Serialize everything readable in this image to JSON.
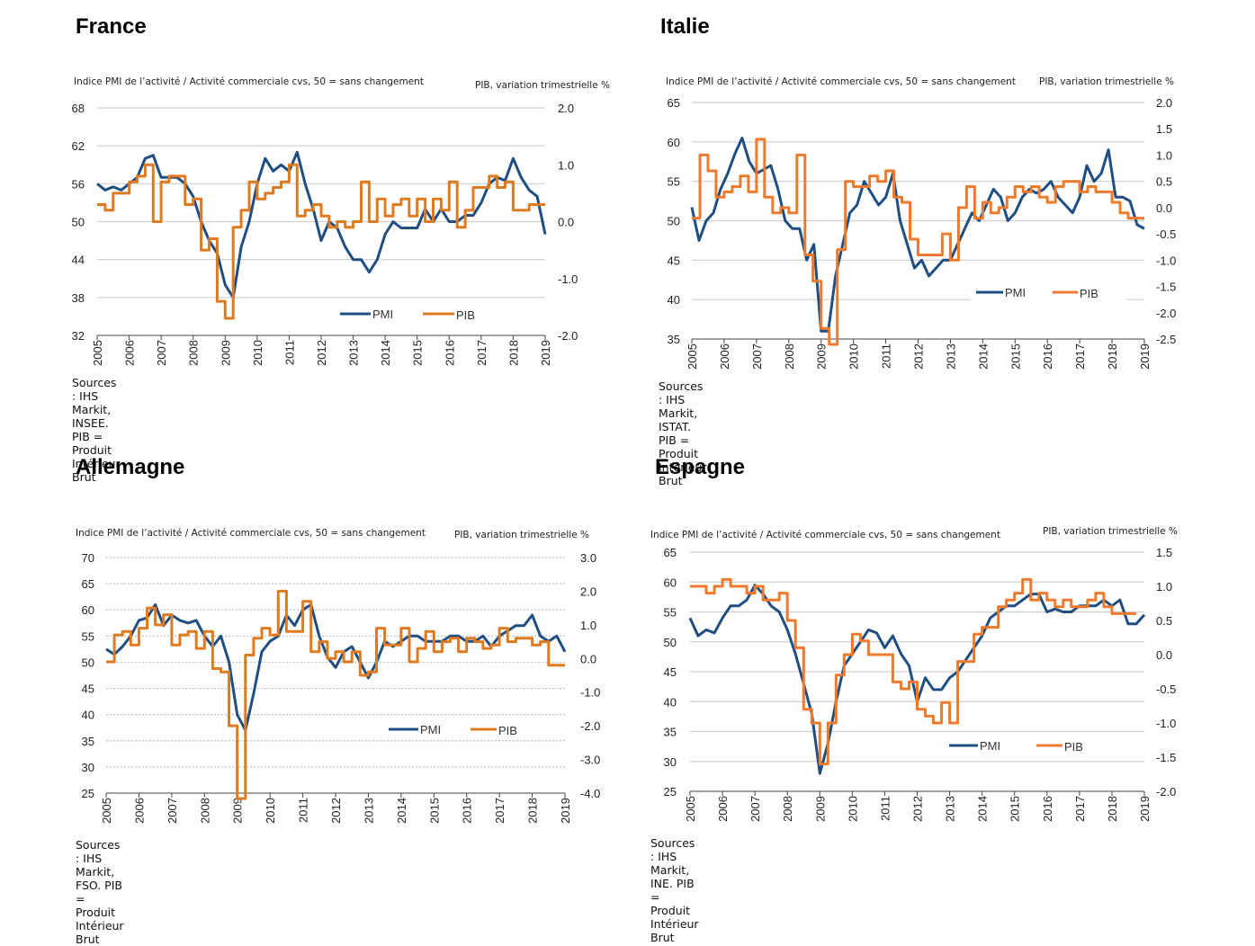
{
  "colors": {
    "pmi": "#1f4e82",
    "pib_fr": "#e07a1f",
    "pib_other": "#f07a2c",
    "grid": "#cfcfcf",
    "axis": "#444444"
  },
  "common": {
    "left_axis_label": "Indice PMI de l’activité / Activité commerciale cvs, 50 = sans changement",
    "right_axis_label": "PIB, variation trimestrielle %",
    "legend_pmi": "PMI",
    "legend_pib": "PIB"
  },
  "chart_data": [
    {
      "id": "france",
      "type": "line",
      "title": "France",
      "left_axis_label": "Indice PMI de l’activité / Activité commerciale cvs, 50 = sans changement",
      "right_axis_label": "PIB, variation trimestrielle %",
      "source": "Sources : IHS Markit, INSEE. PIB = Produit Intérieur Brut",
      "x_ticks": [
        "2005",
        "2006",
        "2007",
        "2008",
        "2009",
        "2010",
        "2011",
        "2012",
        "2013",
        "2014",
        "2015",
        "2016",
        "2017",
        "2018",
        "2019"
      ],
      "x_range": [
        2005,
        2019
      ],
      "y_left": {
        "range": [
          32,
          68
        ],
        "ticks": [
          "68",
          "62",
          "56",
          "50",
          "44",
          "38",
          "32"
        ],
        "values": [
          68,
          62,
          56,
          50,
          44,
          38,
          32
        ]
      },
      "y_right": {
        "range": [
          -2.0,
          2.0
        ],
        "ticks": [
          "2.0",
          "1.0",
          "0.0",
          "-1.0",
          "-2.0"
        ],
        "values": [
          2,
          1,
          0,
          -1,
          -2
        ]
      },
      "grid": "solid",
      "legend": "bottom-center",
      "series": [
        {
          "name": "PMI",
          "axis": "left",
          "frequency": "quarterly",
          "start": 2005.0,
          "values": [
            56,
            55,
            55.5,
            55,
            56,
            57,
            60,
            60.5,
            57,
            57,
            57,
            56,
            54,
            50,
            47,
            45,
            40,
            38,
            46,
            50,
            56,
            60,
            58,
            59,
            58,
            61,
            56,
            52,
            47,
            50,
            49,
            46,
            44,
            44,
            42,
            44,
            48,
            50,
            49,
            49,
            49,
            52,
            50,
            52,
            50,
            50,
            51,
            51,
            53,
            56,
            57,
            56.5,
            60,
            57,
            55,
            54,
            48
          ]
        },
        {
          "name": "PIB",
          "axis": "right",
          "frequency": "quarterly",
          "step": true,
          "start": 2005.0,
          "values": [
            0.3,
            0.2,
            0.5,
            0.5,
            0.7,
            0.8,
            1.0,
            0.0,
            0.7,
            0.8,
            0.8,
            0.3,
            0.4,
            -0.5,
            -0.3,
            -1.4,
            -1.7,
            -0.1,
            0.2,
            0.7,
            0.4,
            0.5,
            0.6,
            0.7,
            1.0,
            0.1,
            0.2,
            0.3,
            0.1,
            -0.1,
            0.0,
            -0.1,
            0.0,
            0.7,
            0.0,
            0.4,
            0.1,
            0.3,
            0.4,
            0.1,
            0.4,
            0.0,
            0.4,
            0.2,
            0.7,
            -0.1,
            0.2,
            0.6,
            0.6,
            0.8,
            0.6,
            0.7,
            0.2,
            0.2,
            0.3,
            0.3,
            0.3
          ]
        }
      ]
    },
    {
      "id": "italie",
      "type": "line",
      "title": "Italie",
      "left_axis_label": "Indice PMI de l’activité / Activité commerciale cvs, 50 = sans changement",
      "right_axis_label": "PIB, variation trimestrielle %",
      "source": "Sources : IHS Markit, ISTAT. PIB = Produit Intérieur Brut",
      "x_ticks": [
        "2005",
        "2006",
        "2007",
        "2008",
        "2009",
        "2010",
        "2011",
        "2012",
        "2013",
        "2014",
        "2015",
        "2016",
        "2017",
        "2018",
        "2019"
      ],
      "x_range": [
        2005,
        2019
      ],
      "y_left": {
        "range": [
          35,
          65
        ],
        "ticks": [
          "65",
          "60",
          "55",
          "50",
          "45",
          "40",
          "35"
        ],
        "values": [
          65,
          60,
          55,
          50,
          45,
          40,
          35
        ]
      },
      "y_right": {
        "range": [
          -2.5,
          2.0
        ],
        "ticks": [
          "2.0",
          "1.5",
          "1.0",
          "0.5",
          "0.0",
          "-0.5",
          "-1.0",
          "-1.5",
          "-2.0",
          "-2.5"
        ],
        "values": [
          2,
          1.5,
          1,
          0.5,
          0,
          -0.5,
          -1,
          -1.5,
          -2,
          -2.5
        ]
      },
      "grid": "solid",
      "legend": "bottom-right",
      "series": [
        {
          "name": "PMI",
          "axis": "left",
          "frequency": "quarterly",
          "start": 2005.0,
          "values": [
            51.7,
            47.5,
            50,
            51,
            54,
            56,
            58.5,
            60.5,
            57.5,
            56,
            56.5,
            57,
            54,
            50,
            49,
            49,
            45,
            47,
            36,
            36,
            43,
            47,
            51,
            52,
            55,
            53.5,
            52,
            53,
            56,
            50,
            47,
            44,
            45,
            43,
            44,
            45,
            45,
            47,
            49,
            51,
            50,
            52,
            54,
            53,
            50,
            51,
            53,
            54,
            53.5,
            54,
            55,
            53,
            52,
            51,
            53,
            57,
            55,
            56,
            59,
            53,
            53,
            52.5,
            49.5,
            49
          ]
        },
        {
          "name": "PIB",
          "axis": "right",
          "frequency": "quarterly",
          "step": true,
          "start": 2005.0,
          "values": [
            -0.2,
            1.0,
            0.7,
            0.2,
            0.3,
            0.4,
            0.6,
            0.3,
            1.3,
            0.2,
            -0.1,
            0.0,
            -0.1,
            1.0,
            -0.9,
            -1.4,
            -2.3,
            -2.8,
            -0.8,
            0.5,
            0.4,
            0.4,
            0.6,
            0.5,
            0.7,
            0.2,
            0.1,
            -0.6,
            -0.9,
            -0.9,
            -0.9,
            -0.5,
            -1.0,
            0.0,
            0.4,
            -0.2,
            0.1,
            -0.1,
            0.0,
            0.2,
            0.4,
            0.3,
            0.4,
            0.2,
            0.1,
            0.4,
            0.5,
            0.5,
            0.3,
            0.4,
            0.3,
            0.3,
            0.1,
            -0.1,
            -0.2,
            -0.2
          ]
        }
      ]
    },
    {
      "id": "allemagne",
      "type": "line",
      "title": "Allemagne",
      "left_axis_label": "Indice PMI de l’activité / Activité commerciale cvs, 50 = sans changement",
      "right_axis_label": "PIB, variation trimestrielle %",
      "source": "Sources : IHS Markit, FSO. PIB = Produit Intérieur Brut",
      "x_ticks": [
        "2005",
        "2006",
        "2007",
        "2008",
        "2009",
        "2010",
        "2011",
        "2012",
        "2013",
        "2014",
        "2015",
        "2016",
        "2017",
        "2018",
        "2019"
      ],
      "x_range": [
        2005,
        2019
      ],
      "y_left": {
        "range": [
          25,
          70
        ],
        "ticks": [
          "70",
          "65",
          "60",
          "55",
          "50",
          "45",
          "40",
          "35",
          "30",
          "25"
        ],
        "values": [
          70,
          65,
          60,
          55,
          50,
          45,
          40,
          35,
          30,
          25
        ]
      },
      "y_right": {
        "range": [
          -4.0,
          3.0
        ],
        "ticks": [
          "3.0",
          "2.0",
          "1.0",
          "0.0",
          "-1.0",
          "-2.0",
          "-3.0",
          "-4.0"
        ],
        "values": [
          3,
          2,
          1,
          0,
          -1,
          -2,
          -3,
          -4
        ]
      },
      "grid": "dashed",
      "legend": "bottom-right",
      "series": [
        {
          "name": "PMI",
          "axis": "left",
          "frequency": "quarterly",
          "start": 2005.0,
          "values": [
            52.5,
            51.5,
            53,
            55,
            58,
            58.5,
            61,
            57,
            59,
            58,
            57.5,
            58,
            55,
            53,
            55,
            50,
            40,
            37,
            44,
            52,
            54,
            55,
            59,
            57,
            60,
            61,
            55,
            51,
            49,
            52,
            53,
            50,
            47,
            50,
            54,
            53,
            54,
            55,
            55,
            54,
            54,
            54,
            55,
            55,
            54,
            54,
            55,
            53,
            55,
            56,
            57,
            57,
            59,
            55,
            54,
            55,
            52
          ]
        },
        {
          "name": "PIB",
          "axis": "right",
          "frequency": "quarterly",
          "step": true,
          "start": 2005.0,
          "values": [
            -0.1,
            0.7,
            0.8,
            0.4,
            0.9,
            1.5,
            1.0,
            1.3,
            0.4,
            0.7,
            0.8,
            0.3,
            0.8,
            -0.3,
            -0.4,
            -2.0,
            -4.5,
            0.1,
            0.6,
            0.9,
            0.7,
            2.0,
            0.8,
            0.8,
            1.7,
            0.2,
            0.5,
            0.0,
            0.2,
            -0.1,
            0.2,
            -0.5,
            -0.4,
            0.9,
            0.4,
            0.4,
            0.9,
            -0.1,
            0.3,
            0.8,
            0.2,
            0.5,
            0.6,
            0.2,
            0.6,
            0.5,
            0.3,
            0.4,
            0.9,
            0.5,
            0.6,
            0.6,
            0.4,
            0.5,
            -0.2,
            -0.2
          ]
        }
      ]
    },
    {
      "id": "espagne",
      "type": "line",
      "title": "Espagne",
      "left_axis_label": "Indice PMI de l’activité / Activité commerciale cvs, 50 = sans changement",
      "right_axis_label": "PIB, variation trimestrielle %",
      "source": "Sources : IHS Markit, INE. PIB = Produit Intérieur Brut",
      "x_ticks": [
        "2005",
        "2006",
        "2007",
        "2008",
        "2009",
        "2010",
        "2011",
        "2012",
        "2013",
        "2014",
        "2015",
        "2016",
        "2017",
        "2018",
        "2019"
      ],
      "x_range": [
        2005,
        2019
      ],
      "y_left": {
        "range": [
          25,
          65
        ],
        "ticks": [
          "65",
          "60",
          "55",
          "50",
          "45",
          "40",
          "35",
          "30",
          "25"
        ],
        "values": [
          65,
          60,
          55,
          50,
          45,
          40,
          35,
          30,
          25
        ]
      },
      "y_right": {
        "range": [
          -2.0,
          1.5
        ],
        "ticks": [
          "1.5",
          "1.0",
          "0.5",
          "0.0",
          "-0.5",
          "-1.0",
          "-1.5",
          "-2.0"
        ],
        "values": [
          1.5,
          1,
          0.5,
          0,
          -0.5,
          -1,
          -1.5,
          -2
        ]
      },
      "grid": "solid",
      "legend": "bottom-center",
      "series": [
        {
          "name": "PMI",
          "axis": "left",
          "frequency": "quarterly",
          "start": 2005.0,
          "values": [
            54,
            51,
            52,
            51.5,
            54,
            56,
            56,
            57,
            59.5,
            58,
            56,
            55,
            52,
            48,
            43,
            38,
            28,
            33,
            40,
            46,
            48,
            50,
            52,
            51.5,
            49,
            51,
            48,
            46,
            40,
            44,
            42,
            42,
            44,
            45,
            47,
            49,
            51,
            54,
            55,
            56,
            56,
            57,
            58,
            58,
            55,
            55.5,
            55,
            55,
            56,
            56,
            56,
            57,
            56,
            57,
            53,
            53,
            54.5
          ]
        },
        {
          "name": "PIB",
          "axis": "right",
          "frequency": "quarterly",
          "step": true,
          "start": 2005.0,
          "values": [
            1.0,
            1.0,
            0.9,
            1.0,
            1.1,
            1.0,
            1.0,
            0.9,
            1.0,
            0.8,
            0.8,
            0.9,
            0.5,
            0.1,
            -0.8,
            -1.0,
            -1.6,
            -1.0,
            -0.3,
            0.0,
            0.3,
            0.2,
            0.0,
            0.0,
            0.0,
            -0.4,
            -0.5,
            -0.4,
            -0.8,
            -0.9,
            -1.0,
            -0.7,
            -1.0,
            -0.1,
            -0.1,
            0.3,
            0.4,
            0.4,
            0.7,
            0.8,
            0.9,
            1.1,
            0.8,
            0.9,
            0.8,
            0.7,
            0.8,
            0.7,
            0.7,
            0.8,
            0.9,
            0.7,
            0.6,
            0.6,
            0.6
          ]
        }
      ]
    }
  ]
}
